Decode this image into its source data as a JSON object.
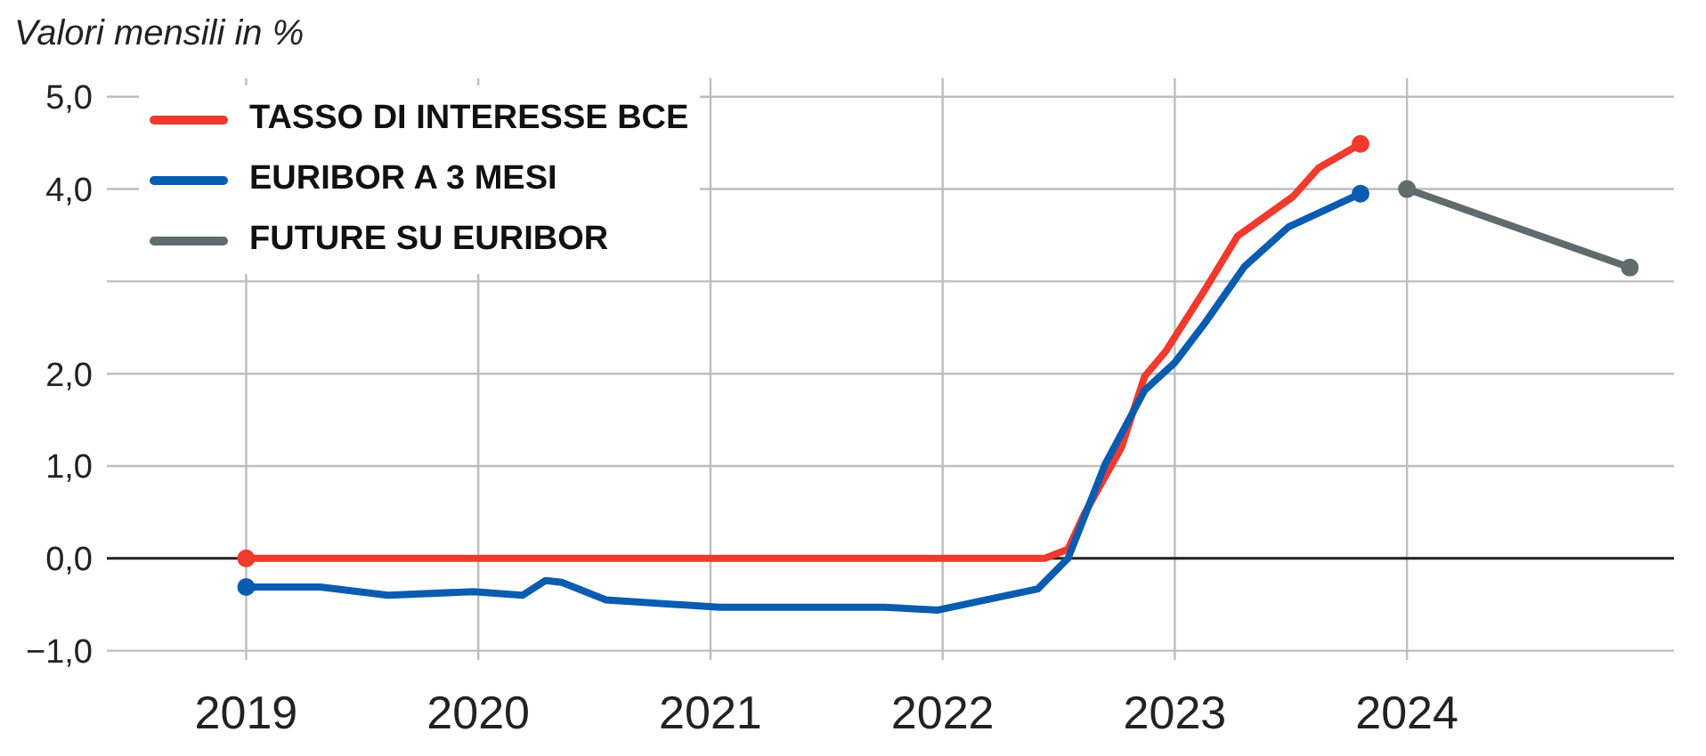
{
  "chart_data": {
    "type": "line",
    "title": "Valori mensili in %",
    "xlim": [
      2018.4,
      2025.15
    ],
    "xticks": [
      2019,
      2020,
      2021,
      2022,
      2023,
      2024
    ],
    "ylim": [
      -1.1,
      5.2
    ],
    "yticks": [
      {
        "value": -1,
        "label": "−1,0"
      },
      {
        "value": 0,
        "label": "0,0"
      },
      {
        "value": 1,
        "label": "1,0"
      },
      {
        "value": 2,
        "label": "2,0"
      },
      {
        "value": 3,
        "label": null
      },
      {
        "value": 4,
        "label": "4,0"
      },
      {
        "value": 5,
        "label": "5,0"
      }
    ],
    "grid": true,
    "legend": "top left",
    "line_style": "solid",
    "ref_lines": [
      {
        "axis": "y",
        "value": 0,
        "label": null,
        "color": "#222222"
      }
    ],
    "series": [
      {
        "name": "TASSO DI INTERESSE BCE",
        "color": "#f03a2e",
        "x": [
          2019,
          2022.44,
          2022.54,
          2022.61,
          2022.77,
          2022.87,
          2022.96,
          2023.13,
          2023.27,
          2023.51,
          2023.62,
          2023.8
        ],
        "values": [
          0,
          0,
          0.1,
          0.48,
          1.2,
          1.97,
          2.24,
          2.91,
          3.49,
          3.92,
          4.23,
          4.49
        ]
      },
      {
        "name": "EURIBOR A 3 MESI",
        "color": "#0a5cb0",
        "x": [
          2019,
          2019.32,
          2019.61,
          2019.98,
          2020.19,
          2020.29,
          2020.36,
          2020.55,
          2021.04,
          2021.75,
          2021.98,
          2022.41,
          2022.54,
          2022.7,
          2022.87,
          2023,
          2023.13,
          2023.3,
          2023.49,
          2023.8
        ],
        "values": [
          -0.31,
          -0.31,
          -0.4,
          -0.36,
          -0.4,
          -0.24,
          -0.26,
          -0.45,
          -0.53,
          -0.53,
          -0.56,
          -0.33,
          0,
          1.02,
          1.82,
          2.12,
          2.55,
          3.16,
          3.59,
          3.95
        ]
      },
      {
        "name": "FUTURE SU EURIBOR",
        "color": "#5f6b6d",
        "marker": "circle",
        "x": [
          2024,
          2024.96
        ],
        "values": [
          4,
          3.15
        ]
      }
    ]
  }
}
